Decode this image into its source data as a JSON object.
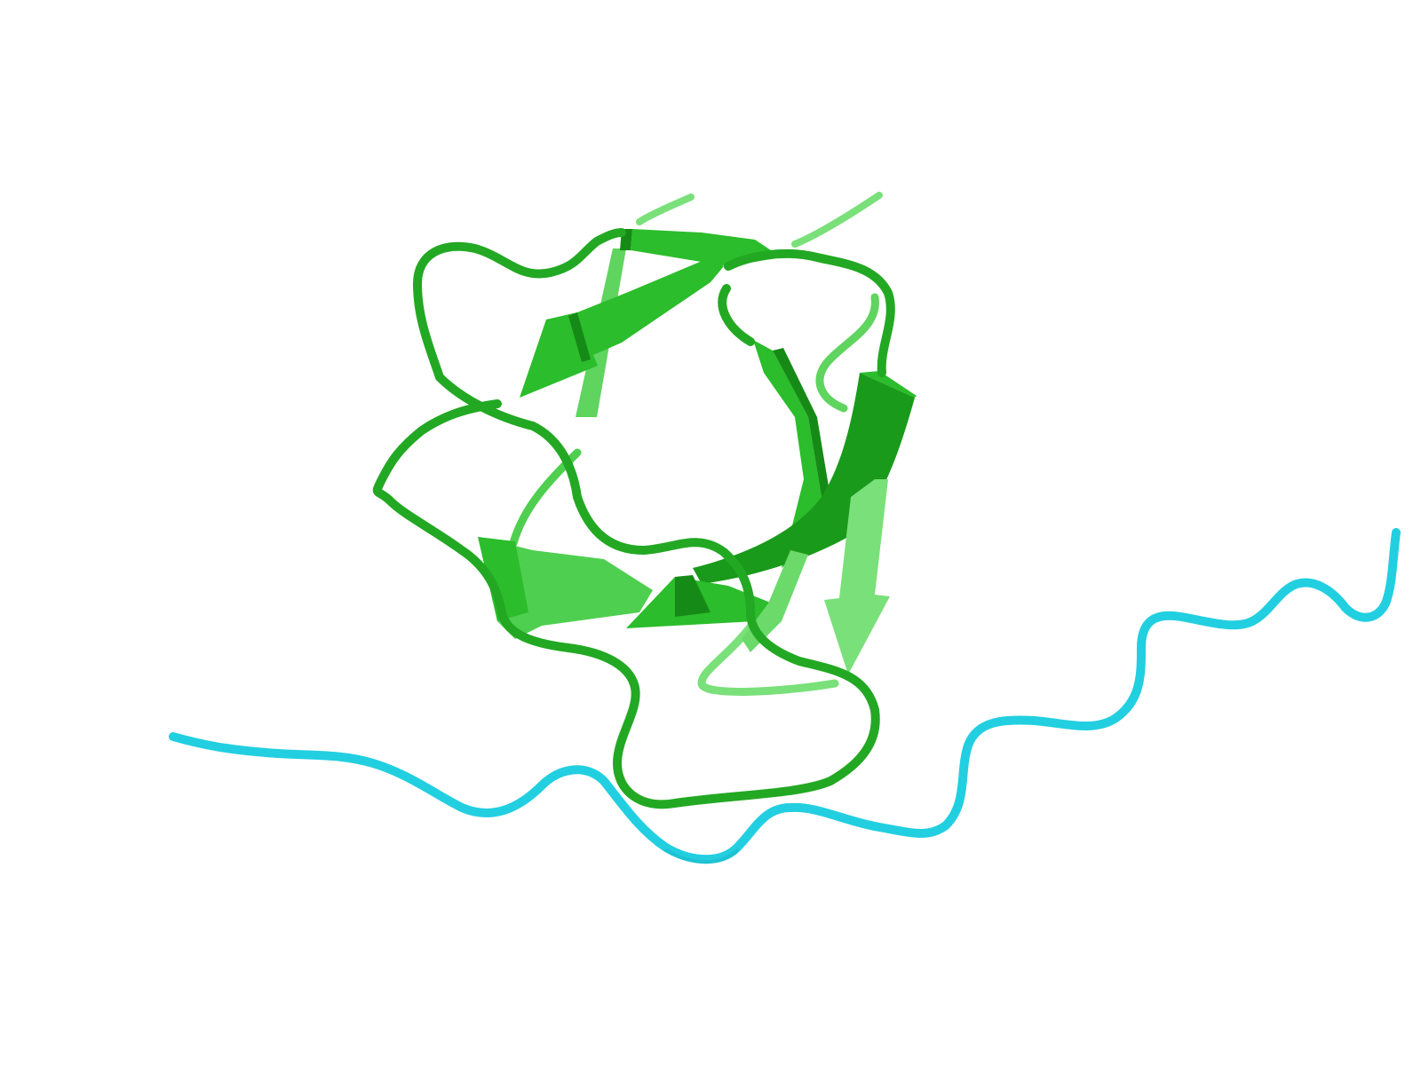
{
  "colors": {
    "background": "#ffffff",
    "chain_a": "#2bbd2b",
    "chain_a_light": "#7ae07a",
    "chain_a_dark": "#168a16",
    "chain_b": "#22cfe0",
    "chain_b_dark": "#17a9ba"
  },
  "representation": "cartoon",
  "chains": [
    {
      "name": "chain-a",
      "color_key": "chain_a",
      "secondary_structure": [
        "beta-strand",
        "beta-strand",
        "beta-strand",
        "beta-strand",
        "beta-strand",
        "beta-strand",
        "coil"
      ]
    },
    {
      "name": "chain-b",
      "color_key": "chain_b",
      "secondary_structure": [
        "coil"
      ]
    }
  ]
}
